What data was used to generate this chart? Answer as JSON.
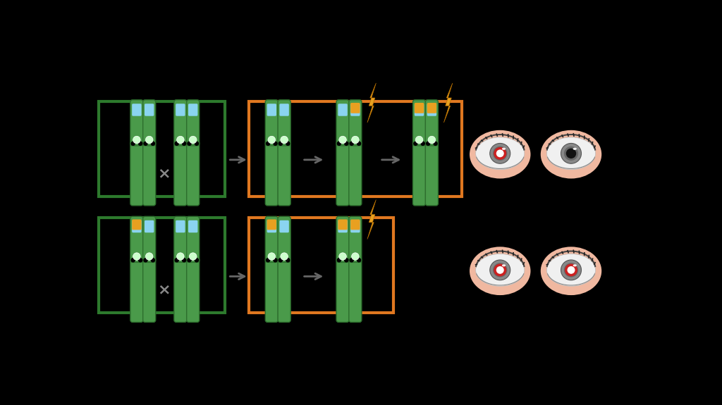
{
  "bg_color": "#000000",
  "green_box_color": "#2d7a2d",
  "orange_box_color": "#e07820",
  "chrom_body": "#4a9a4a",
  "chrom_shadow": "#2d6e2d",
  "chrom_blue": "#8ad4f0",
  "chrom_green_dot": "#aaffaa",
  "chrom_orange": "#e8a020",
  "arrow_color": "#666666",
  "lightning_color": "#e8a020",
  "eye_skin": "#f0b8a0",
  "eye_white": "#f0f0f0",
  "eye_iris": "#888888",
  "eye_iris_dark": "#555555",
  "eye_pupil": "#111111",
  "eye_red": "#cc2020",
  "x_color": "#888888"
}
